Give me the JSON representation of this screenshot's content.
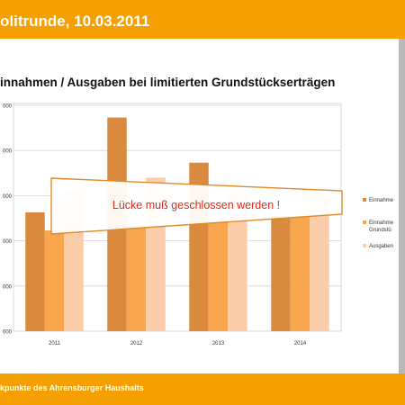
{
  "slide": {
    "header_title": "olitrunde, 10.03.2011",
    "footer_text": "kpunkte des Ahrensburger Haushalts",
    "colors": {
      "bar_accent": "#F5A000",
      "dark_series": "#D98A3E",
      "mid_series": "#F7A64E",
      "light_series": "#FCCDAB"
    }
  },
  "chart_data": {
    "type": "bar",
    "title": "innahmen / Ausgaben bei limitierten Grundstückserträgen",
    "categories": [
      "2011",
      "2012",
      "2013",
      "2014"
    ],
    "y_tick_labels": [
      "000",
      "000",
      "000",
      "000",
      "000",
      "000"
    ],
    "ylim": [
      0,
      5
    ],
    "series": [
      {
        "name": "Einnahme",
        "values": [
          2.63,
          4.73,
          3.73,
          2.55
        ]
      },
      {
        "name": "Einnahme\nGrundstü",
        "values": [
          2.23,
          2.35,
          2.43,
          2.55
        ]
      },
      {
        "name": "Ausgaben",
        "values": [
          3.1,
          3.4,
          3.05,
          2.9
        ]
      }
    ],
    "legend_position": "right",
    "grid": true,
    "annotation": "Lücke muß geschlossen werden !"
  }
}
